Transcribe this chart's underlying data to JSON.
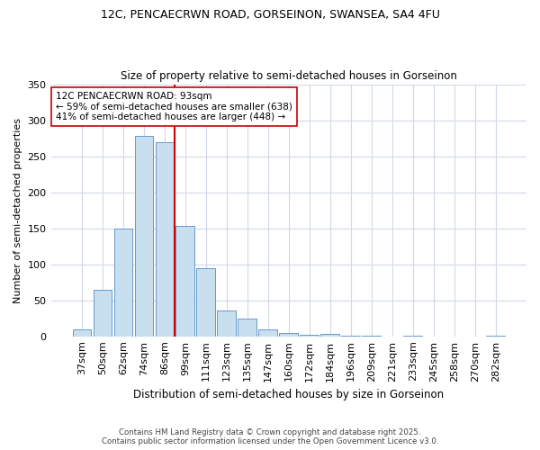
{
  "title1": "12C, PENCAECRWN ROAD, GORSEINON, SWANSEA, SA4 4FU",
  "title2": "Size of property relative to semi-detached houses in Gorseinon",
  "xlabel": "Distribution of semi-detached houses by size in Gorseinon",
  "ylabel": "Number of semi-detached properties",
  "categories": [
    "37sqm",
    "50sqm",
    "62sqm",
    "74sqm",
    "86sqm",
    "99sqm",
    "111sqm",
    "123sqm",
    "135sqm",
    "147sqm",
    "160sqm",
    "172sqm",
    "184sqm",
    "196sqm",
    "209sqm",
    "221sqm",
    "233sqm",
    "245sqm",
    "258sqm",
    "270sqm",
    "282sqm"
  ],
  "values": [
    10,
    65,
    150,
    278,
    270,
    153,
    95,
    36,
    24,
    9,
    4,
    2,
    3,
    1,
    1,
    0,
    1,
    0,
    0,
    0,
    1
  ],
  "bar_color": "#c8dff0",
  "bar_edge_color": "#6699cc",
  "vline_x_index": 5,
  "vline_label": "12C PENCAECRWN ROAD: 93sqm",
  "annotation_line1": "← 59% of semi-detached houses are smaller (638)",
  "annotation_line2": "41% of semi-detached houses are larger (448) →",
  "vline_color": "#cc0000",
  "ylim": [
    0,
    350
  ],
  "yticks": [
    0,
    50,
    100,
    150,
    200,
    250,
    300,
    350
  ],
  "footer1": "Contains HM Land Registry data © Crown copyright and database right 2025.",
  "footer2": "Contains public sector information licensed under the Open Government Licence v3.0.",
  "bg_color": "#ffffff",
  "grid_color": "#d0d8e8"
}
